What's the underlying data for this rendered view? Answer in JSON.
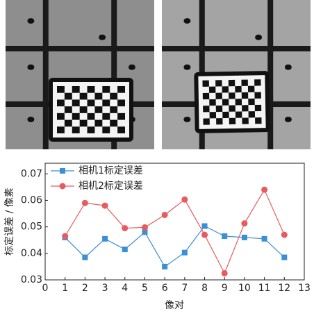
{
  "chart_data": {
    "type": "line",
    "x": [
      1,
      2,
      3,
      4,
      5,
      6,
      7,
      8,
      9,
      10,
      11,
      12
    ],
    "series": [
      {
        "name": "相机1标定误差",
        "color": "#3a8fd6",
        "marker": "square",
        "values": [
          0.046,
          0.0385,
          0.0455,
          0.0415,
          0.048,
          0.035,
          0.0403,
          0.0503,
          0.0465,
          0.046,
          0.0455,
          0.0385
        ]
      },
      {
        "name": "相机2标定误差",
        "color": "#e85a5e",
        "marker": "circle",
        "values": [
          0.0465,
          0.059,
          0.058,
          0.0495,
          0.0498,
          0.0545,
          0.0603,
          0.047,
          0.0325,
          0.0513,
          0.064,
          0.047
        ]
      }
    ],
    "xlabel": "像对",
    "ylabel": "标定误差 / 像素",
    "xlim": [
      0,
      13
    ],
    "xticks": [
      0,
      1,
      2,
      3,
      4,
      5,
      6,
      7,
      8,
      9,
      10,
      11,
      12,
      13
    ],
    "ylim": [
      0.03,
      0.074
    ],
    "yticks": [
      0.03,
      0.04,
      0.05,
      0.06,
      0.07
    ],
    "grid": false,
    "legend": "upper-left"
  }
}
